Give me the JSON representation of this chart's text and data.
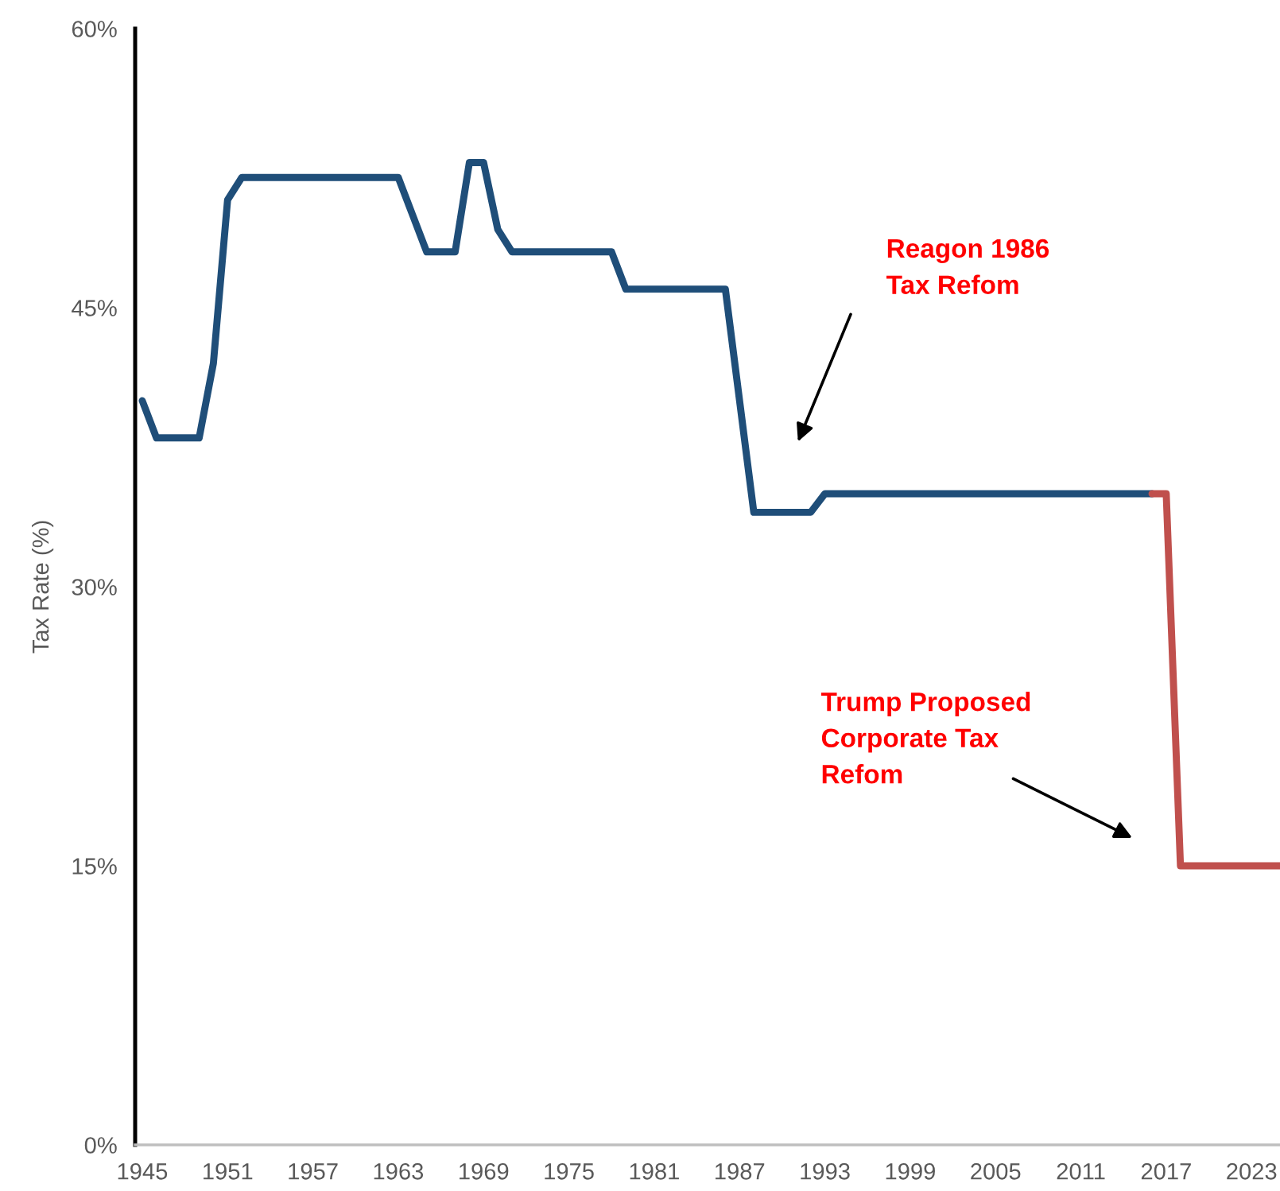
{
  "chart_data": {
    "type": "line",
    "ylabel": "Tax Rate (%)",
    "series": [
      {
        "color": "#1f4e79",
        "x": [
          1945,
          1946,
          1947,
          1948,
          1949,
          1950,
          1951,
          1952,
          1953,
          1954,
          1955,
          1956,
          1957,
          1958,
          1959,
          1960,
          1961,
          1962,
          1963,
          1964,
          1965,
          1966,
          1967,
          1968,
          1969,
          1970,
          1971,
          1972,
          1973,
          1974,
          1975,
          1976,
          1977,
          1978,
          1979,
          1980,
          1981,
          1982,
          1983,
          1984,
          1985,
          1986,
          1987,
          1988,
          1989,
          1990,
          1991,
          1992,
          1993,
          1994,
          1995,
          1996,
          1997,
          1998,
          1999,
          2000,
          2001,
          2002,
          2003,
          2004,
          2005,
          2006,
          2007,
          2008,
          2009,
          2010,
          2011,
          2012,
          2013,
          2014,
          2015,
          2016
        ],
        "values": [
          40,
          38,
          38,
          38,
          38,
          42,
          50.8,
          52,
          52,
          52,
          52,
          52,
          52,
          52,
          52,
          52,
          52,
          52,
          52,
          50,
          48,
          48,
          48,
          52.8,
          52.8,
          49.2,
          48,
          48,
          48,
          48,
          48,
          48,
          48,
          48,
          46,
          46,
          46,
          46,
          46,
          46,
          46,
          46,
          40,
          34,
          34,
          34,
          34,
          34,
          35,
          35,
          35,
          35,
          35,
          35,
          35,
          35,
          35,
          35,
          35,
          35,
          35,
          35,
          35,
          35,
          35,
          35,
          35,
          35,
          35,
          35,
          35,
          35
        ]
      },
      {
        "color": "#c0504d",
        "x": [
          2016,
          2017,
          2018,
          2019,
          2020,
          2021,
          2022,
          2023,
          2024,
          2025
        ],
        "values": [
          35,
          35,
          15,
          15,
          15,
          15,
          15,
          15,
          15,
          15
        ]
      }
    ],
    "xlim": [
      1944.5,
      2025
    ],
    "xticks": [
      1945,
      1951,
      1957,
      1963,
      1969,
      1975,
      1981,
      1987,
      1993,
      1999,
      2005,
      2011,
      2017,
      2023
    ],
    "ylim": [
      0,
      60
    ],
    "yticks": [
      {
        "value": 0,
        "label": "0%"
      },
      {
        "value": 15,
        "label": "15%"
      },
      {
        "value": 30,
        "label": "30%"
      },
      {
        "value": 45,
        "label": "45%"
      },
      {
        "value": 60,
        "label": "60%"
      }
    ],
    "grid": false,
    "marker": "none",
    "line_style": "solid",
    "annotations": [
      "Reagon 1986\nTax Refom",
      "Trump Proposed\nCorporate Tax\nRefom"
    ]
  }
}
